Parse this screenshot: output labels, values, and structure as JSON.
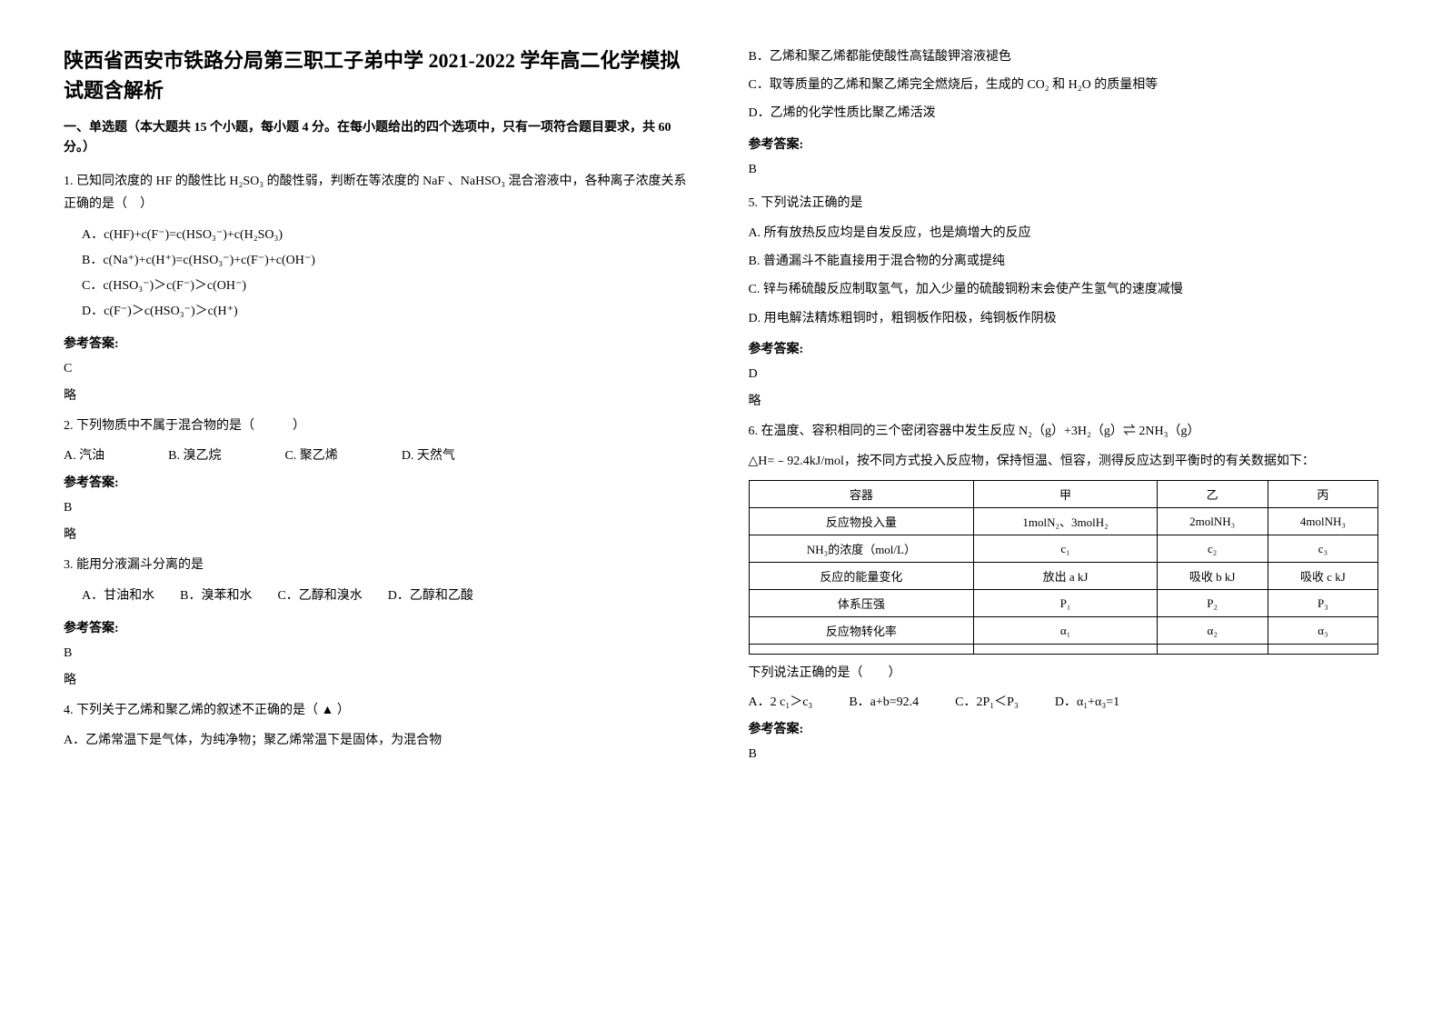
{
  "title": "陕西省西安市铁路分局第三职工子弟中学 2021-2022 学年高二化学模拟试题含解析",
  "section_header": "一、单选题（本大题共 15 个小题，每小题 4 分。在每小题给出的四个选项中，只有一项符合题目要求，共 60 分。）",
  "answer_label": "参考答案:",
  "abbr_text": "略",
  "q1": {
    "stem": "1. 已知同浓度的 HF 的酸性比 H₂SO₃ 的酸性弱，判断在等浓度的 NaF 、NaHSO₃ 混合溶液中，各种离子浓度关系正确的是（　）",
    "optA": "A．c(HF)+c(F⁻)=c(HSO₃⁻)+c(H₂SO₃)",
    "optB": "B．c(Na⁺)+c(H⁺)=c(HSO₃⁻)+c(F⁻)+c(OH⁻)",
    "optC": "C．c(HSO₃⁻)＞c(F⁻)＞c(OH⁻)",
    "optD": "D．c(F⁻)＞c(HSO₃⁻)＞c(H⁺)",
    "answer": "C"
  },
  "q2": {
    "stem": "2. 下列物质中不属于混合物的是（　　　）",
    "optA": "A. 汽油",
    "optB": "B. 溴乙烷",
    "optC": "C. 聚乙烯",
    "optD": "D. 天然气",
    "answer": "B"
  },
  "q3": {
    "stem": "3. 能用分液漏斗分离的是",
    "opts": "A．甘油和水　　B．溴苯和水　　C．乙醇和溴水　　D．乙醇和乙酸",
    "answer": "B"
  },
  "q4": {
    "stem": "4. 下列关于乙烯和聚乙烯的叙述不正确的是（ ▲ ）",
    "optA": "A．乙烯常温下是气体，为纯净物；聚乙烯常温下是固体，为混合物",
    "optB": "B．乙烯和聚乙烯都能使酸性高锰酸钾溶液褪色",
    "optC": "C．取等质量的乙烯和聚乙烯完全燃烧后，生成的 CO₂ 和 H₂O 的质量相等",
    "optD": "D．乙烯的化学性质比聚乙烯活泼",
    "answer": "B"
  },
  "q5": {
    "stem": "5. 下列说法正确的是",
    "optA": "A. 所有放热反应均是自发反应，也是熵增大的反应",
    "optB": "B.  普通漏斗不能直接用于混合物的分离或提纯",
    "optC": "C. 锌与稀硫酸反应制取氢气，加入少量的硫酸铜粉末会使产生氢气的速度减慢",
    "optD": "D. 用电解法精炼粗铜时，粗铜板作阳极，纯铜板作阴极",
    "answer": "D"
  },
  "q6": {
    "stem1": "6. 在温度、容积相同的三个密闭容器中发生反应 N₂（g）+3H₂（g）⇌ 2NH₃（g）",
    "stem2": "△H=﹣92.4kJ/mol，按不同方式投入反应物，保持恒温、恒容，测得反应达到平衡时的有关数据如下：",
    "table": {
      "headers": [
        "容器",
        "甲",
        "乙",
        "丙"
      ],
      "rows": [
        [
          "反应物投入量",
          "1molN₂、3molH₂",
          "2molNH₃",
          "4molNH₃"
        ],
        [
          "NH₃的浓度（mol/L）",
          "c₁",
          "c₂",
          "c₃"
        ],
        [
          "反应的能量变化",
          "放出 a kJ",
          "吸收 b kJ",
          "吸收 c kJ"
        ],
        [
          "体系压强",
          "P₁",
          "P₂",
          "P₃"
        ],
        [
          "反应物转化率",
          "α₁",
          "α₂",
          "α₃"
        ],
        [
          "",
          "",
          "",
          ""
        ]
      ]
    },
    "post": "下列说法正确的是（　　）",
    "optA": "A．2 c₁＞c₃",
    "optB": "B．a+b=92.4",
    "optC": "C．2P₁＜P₃",
    "optD": "D．α₁+α₃=1",
    "answer": "B"
  }
}
